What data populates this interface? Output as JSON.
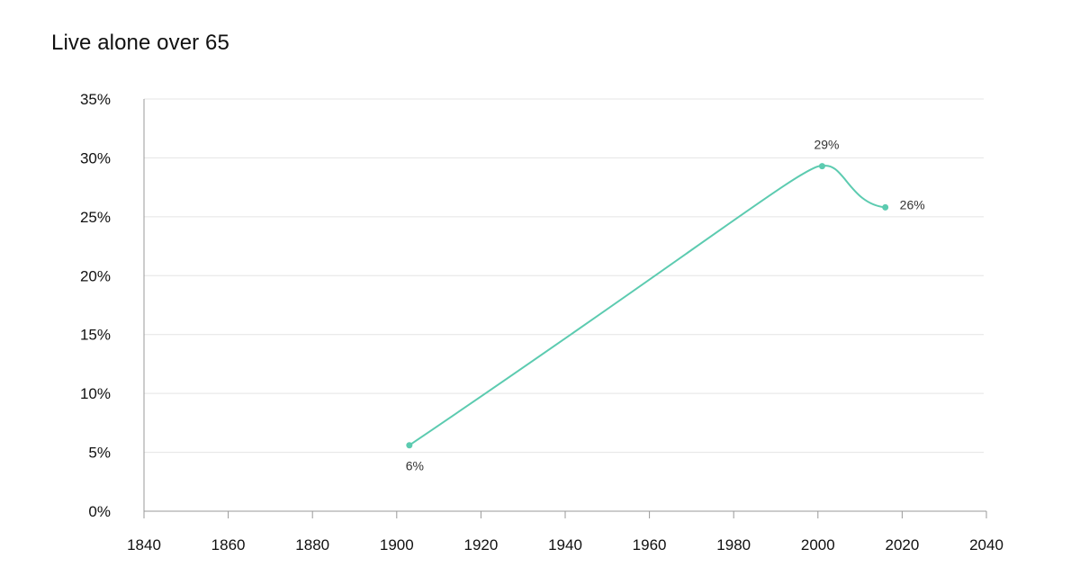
{
  "chart_data": {
    "type": "line",
    "title": "Live alone over 65",
    "xlabel": "",
    "ylabel": "",
    "xlim": [
      1840,
      2040
    ],
    "ylim": [
      0,
      35
    ],
    "x_ticks": [
      1840,
      1860,
      1880,
      1900,
      1920,
      1940,
      1960,
      1980,
      2000,
      2020,
      2040
    ],
    "y_ticks": [
      0,
      5,
      10,
      15,
      20,
      25,
      30,
      35
    ],
    "y_tick_labels": [
      "0%",
      "5%",
      "10%",
      "15%",
      "20%",
      "25%",
      "30%",
      "35%"
    ],
    "grid": "horizontal",
    "series": [
      {
        "color": "#5ccbb0",
        "x": [
          1903,
          2001,
          2016
        ],
        "y": [
          5.6,
          29.3,
          25.8
        ],
        "labels": [
          "6%",
          "29%",
          "26%"
        ]
      }
    ]
  }
}
